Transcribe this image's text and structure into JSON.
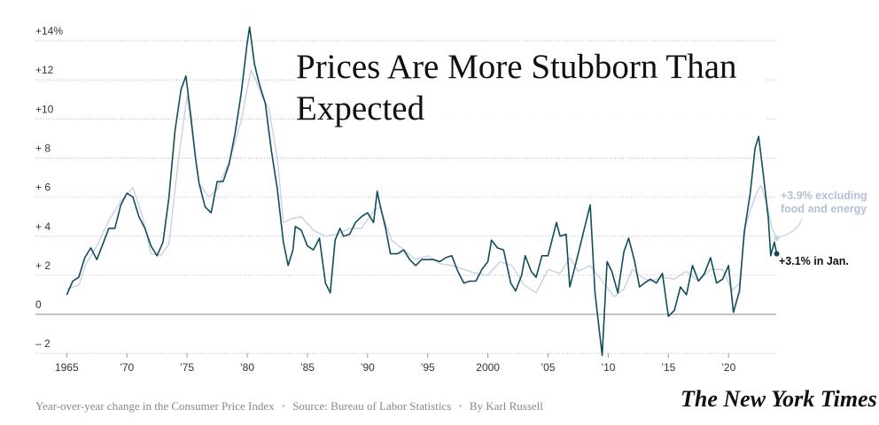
{
  "chart_data": {
    "type": "line",
    "title": "Prices Are More Stubborn Than Expected",
    "xlim": [
      1962.4,
      2024.4
    ],
    "ylim": [
      -2.2,
      14.8
    ],
    "xticks": [
      1965,
      {
        "value": 1970,
        "label": "’70"
      },
      {
        "value": 1975,
        "label": "’75"
      },
      {
        "value": 1980,
        "label": "’80"
      },
      {
        "value": 1985,
        "label": "’85"
      },
      {
        "value": 1990,
        "label": "’90"
      },
      {
        "value": 1995,
        "label": "’95"
      },
      2000,
      {
        "value": 2005,
        "label": "’05"
      },
      {
        "value": 2010,
        "label": "’10"
      },
      {
        "value": 2015,
        "label": "’15"
      },
      {
        "value": 2020,
        "label": "’20"
      }
    ],
    "yticks": [
      {
        "value": -2,
        "label": "– 2"
      },
      0,
      {
        "value": 2,
        "label": "+ 2"
      },
      {
        "value": 4,
        "label": "+ 4"
      },
      {
        "value": 6,
        "label": "+ 6"
      },
      {
        "value": 8,
        "label": "+ 8"
      },
      {
        "value": 10,
        "label": "+10"
      },
      {
        "value": 12,
        "label": "+12"
      },
      {
        "value": 14,
        "label": "+14%"
      }
    ],
    "grid": true,
    "annotations": [
      "+3.9% excluding food and energy",
      "+3.1% in Jan."
    ],
    "footer": [
      "Year-over-year change in the Consumer Price Index",
      "Source: Bureau of Labor Statistics",
      "By Karl Russell"
    ],
    "logo": "The New York Times",
    "series": [
      {
        "color": "#c9d1e4",
        "x": [
          1965.0,
          1966.0,
          1966.6,
          1967.5,
          1968.5,
          1969.5,
          1970.5,
          1971.3,
          1972.0,
          1972.8,
          1973.5,
          1974.2,
          1975.0,
          1975.5,
          1976.0,
          1976.8,
          1977.5,
          1978.5,
          1979.5,
          1980.3,
          1980.7,
          1981.2,
          1981.8,
          1982.5,
          1983.0,
          1983.7,
          1984.5,
          1985.5,
          1986.5,
          1987.5,
          1988.5,
          1989.5,
          1990.5,
          1991.0,
          1992.0,
          1993.0,
          1994.0,
          1995.0,
          1996.0,
          1997.0,
          1998.0,
          1999.0,
          2000.0,
          2001.0,
          2002.0,
          2003.0,
          2004.0,
          2005.0,
          2006.0,
          2006.8,
          2007.5,
          2008.5,
          2009.5,
          2010.5,
          2011.3,
          2012.0,
          2012.8,
          2013.5,
          2014.5,
          2015.5,
          2016.5,
          2017.5,
          2018.5,
          2019.5,
          2020.3,
          2020.9,
          2021.4,
          2021.9,
          2022.4,
          2022.7,
          2023.2,
          2023.6,
          2024.0
        ],
        "values": [
          1.3,
          1.5,
          2.6,
          3.5,
          4.8,
          5.8,
          6.5,
          5.0,
          3.1,
          3.0,
          3.6,
          7.5,
          11.2,
          9.0,
          6.7,
          6.0,
          6.4,
          7.8,
          9.9,
          12.5,
          12.0,
          11.2,
          10.5,
          8.0,
          4.7,
          4.9,
          5.0,
          4.3,
          4.0,
          4.1,
          4.4,
          4.4,
          5.3,
          5.5,
          3.8,
          3.3,
          2.8,
          3.0,
          2.6,
          2.5,
          2.3,
          2.1,
          2.0,
          2.7,
          2.5,
          1.5,
          1.1,
          2.3,
          2.1,
          2.9,
          2.2,
          2.5,
          1.7,
          0.9,
          1.3,
          2.3,
          1.9,
          1.7,
          1.9,
          1.8,
          2.2,
          1.7,
          2.3,
          2.3,
          1.2,
          1.6,
          4.5,
          5.5,
          6.3,
          6.6,
          5.6,
          4.4,
          3.9
        ]
      },
      {
        "color": "#0e4e5c",
        "x": [
          1965.0,
          1965.5,
          1966.0,
          1966.5,
          1967.0,
          1967.5,
          1968.0,
          1968.5,
          1969.0,
          1969.5,
          1970.0,
          1970.5,
          1971.0,
          1971.5,
          1972.0,
          1972.5,
          1973.0,
          1973.5,
          1974.0,
          1974.5,
          1974.9,
          1975.3,
          1975.7,
          1976.0,
          1976.5,
          1977.0,
          1977.5,
          1978.0,
          1978.5,
          1979.0,
          1979.5,
          1980.0,
          1980.2,
          1980.6,
          1981.0,
          1981.5,
          1982.0,
          1982.5,
          1983.0,
          1983.4,
          1983.8,
          1984.0,
          1984.5,
          1985.0,
          1985.5,
          1986.0,
          1986.5,
          1986.9,
          1987.3,
          1987.7,
          1988.0,
          1988.5,
          1989.0,
          1989.5,
          1990.0,
          1990.5,
          1990.8,
          1991.0,
          1991.5,
          1991.9,
          1992.5,
          1993.0,
          1993.5,
          1994.0,
          1994.5,
          1995.0,
          1995.5,
          1996.0,
          1996.5,
          1997.0,
          1997.5,
          1998.0,
          1998.5,
          1999.0,
          1999.5,
          2000.0,
          2000.3,
          2000.8,
          2001.3,
          2001.9,
          2002.3,
          2002.8,
          2003.1,
          2003.6,
          2004.0,
          2004.5,
          2005.0,
          2005.7,
          2006.0,
          2006.5,
          2006.8,
          2007.3,
          2007.9,
          2008.5,
          2008.9,
          2009.5,
          2009.9,
          2010.3,
          2010.8,
          2011.3,
          2011.7,
          2012.2,
          2012.6,
          2013.0,
          2013.5,
          2014.0,
          2014.5,
          2015.0,
          2015.5,
          2016.0,
          2016.5,
          2017.0,
          2017.5,
          2018.0,
          2018.5,
          2019.0,
          2019.5,
          2020.0,
          2020.4,
          2020.9,
          2021.3,
          2021.8,
          2022.2,
          2022.5,
          2022.9,
          2023.3,
          2023.5,
          2023.8,
          2024.0
        ],
        "values": [
          1.0,
          1.7,
          1.9,
          2.9,
          3.4,
          2.8,
          3.6,
          4.4,
          4.4,
          5.6,
          6.2,
          6.0,
          5.0,
          4.4,
          3.5,
          3.0,
          3.7,
          6.0,
          9.4,
          11.5,
          12.2,
          10.2,
          8.0,
          6.7,
          5.5,
          5.2,
          6.8,
          6.8,
          7.7,
          9.3,
          11.3,
          13.9,
          14.7,
          12.8,
          11.8,
          10.8,
          8.4,
          6.4,
          3.7,
          2.5,
          3.3,
          4.5,
          4.3,
          3.5,
          3.3,
          3.9,
          1.6,
          1.1,
          3.8,
          4.4,
          4.0,
          4.1,
          4.7,
          5.0,
          5.2,
          4.7,
          6.3,
          5.7,
          4.4,
          3.1,
          3.1,
          3.3,
          2.8,
          2.5,
          2.8,
          2.8,
          2.8,
          2.7,
          2.9,
          3.0,
          2.2,
          1.6,
          1.7,
          1.7,
          2.3,
          2.7,
          3.8,
          3.4,
          3.3,
          1.6,
          1.2,
          2.0,
          3.0,
          2.2,
          1.9,
          3.0,
          3.0,
          4.7,
          4.0,
          4.1,
          1.4,
          2.6,
          4.1,
          5.6,
          1.1,
          -2.1,
          2.7,
          2.2,
          1.1,
          3.2,
          3.9,
          2.7,
          1.4,
          1.6,
          1.8,
          1.6,
          2.1,
          -0.1,
          0.2,
          1.4,
          1.0,
          2.5,
          1.7,
          2.1,
          2.9,
          1.6,
          1.8,
          2.5,
          0.1,
          1.2,
          4.2,
          6.2,
          8.5,
          9.1,
          7.1,
          4.9,
          3.0,
          3.7,
          3.1
        ]
      }
    ]
  }
}
